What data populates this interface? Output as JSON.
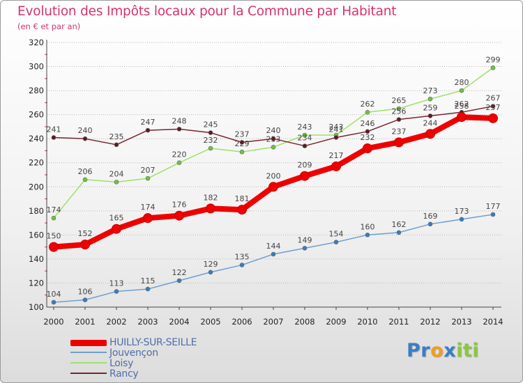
{
  "header": {
    "title": "Evolution des Impôts locaux pour la Commune par Habitant",
    "subtitle": "(en € et par an)"
  },
  "colors": {
    "title": "#d6336c",
    "legend_text": "#4f6ea8",
    "axis_text": "#222222",
    "grid": "#b8b8b8",
    "tick": "#d6336c"
  },
  "logo": {
    "letters": [
      {
        "char": "P",
        "color": "#3b7dc4"
      },
      {
        "char": "r",
        "color": "#3b7dc4"
      },
      {
        "char": "o",
        "color": "#f39c1f"
      },
      {
        "char": "x",
        "color": "#3b7dc4"
      },
      {
        "char": "i",
        "color": "#8cc63f"
      },
      {
        "char": "t",
        "color": "#8cc63f"
      },
      {
        "char": "i",
        "color": "#8cc63f"
      }
    ]
  },
  "chart_data": {
    "type": "line",
    "x": [
      "2000",
      "2001",
      "2002",
      "2003",
      "2004",
      "2005",
      "2006",
      "2007",
      "2008",
      "2009",
      "2010",
      "2011",
      "2012",
      "2013",
      "2014"
    ],
    "ylim": [
      100,
      320
    ],
    "yticks": [
      100,
      120,
      140,
      160,
      180,
      200,
      220,
      240,
      260,
      280,
      300,
      320
    ],
    "grid": "horizontal dotted",
    "legend": "bottom-left",
    "series": [
      {
        "name": "Jouvençon",
        "color": "#6f9fd0",
        "marker": "#3a7bbf",
        "values": [
          104,
          106,
          113,
          115,
          122,
          129,
          135,
          144,
          149,
          154,
          160,
          162,
          169,
          173,
          177
        ]
      },
      {
        "name": "Loisy",
        "color": "#9ee06a",
        "marker": "#6cc63a",
        "values": [
          174,
          206,
          204,
          207,
          220,
          232,
          229,
          233,
          243,
          243,
          262,
          265,
          273,
          280,
          299
        ]
      },
      {
        "name": "Rancy",
        "color": "#7a2430",
        "marker": "#5e1a22",
        "values": [
          241,
          240,
          235,
          247,
          248,
          245,
          237,
          240,
          234,
          241,
          246,
          256,
          259,
          262,
          267
        ]
      },
      {
        "name": "HUILLY-SUR-SEILLE",
        "color": "#ee0000",
        "marker": "#ee0000",
        "values": [
          150,
          152,
          165,
          174,
          176,
          182,
          181,
          200,
          209,
          217,
          232,
          237,
          244,
          258,
          257
        ]
      }
    ]
  },
  "legend": {
    "items": [
      {
        "name": "HUILLY-SUR-SEILLE",
        "color": "#ee0000"
      },
      {
        "name": "Jouvençon",
        "color": "#6f9fd0"
      },
      {
        "name": "Loisy",
        "color": "#9ee06a"
      },
      {
        "name": "Rancy",
        "color": "#7a2430"
      }
    ]
  }
}
